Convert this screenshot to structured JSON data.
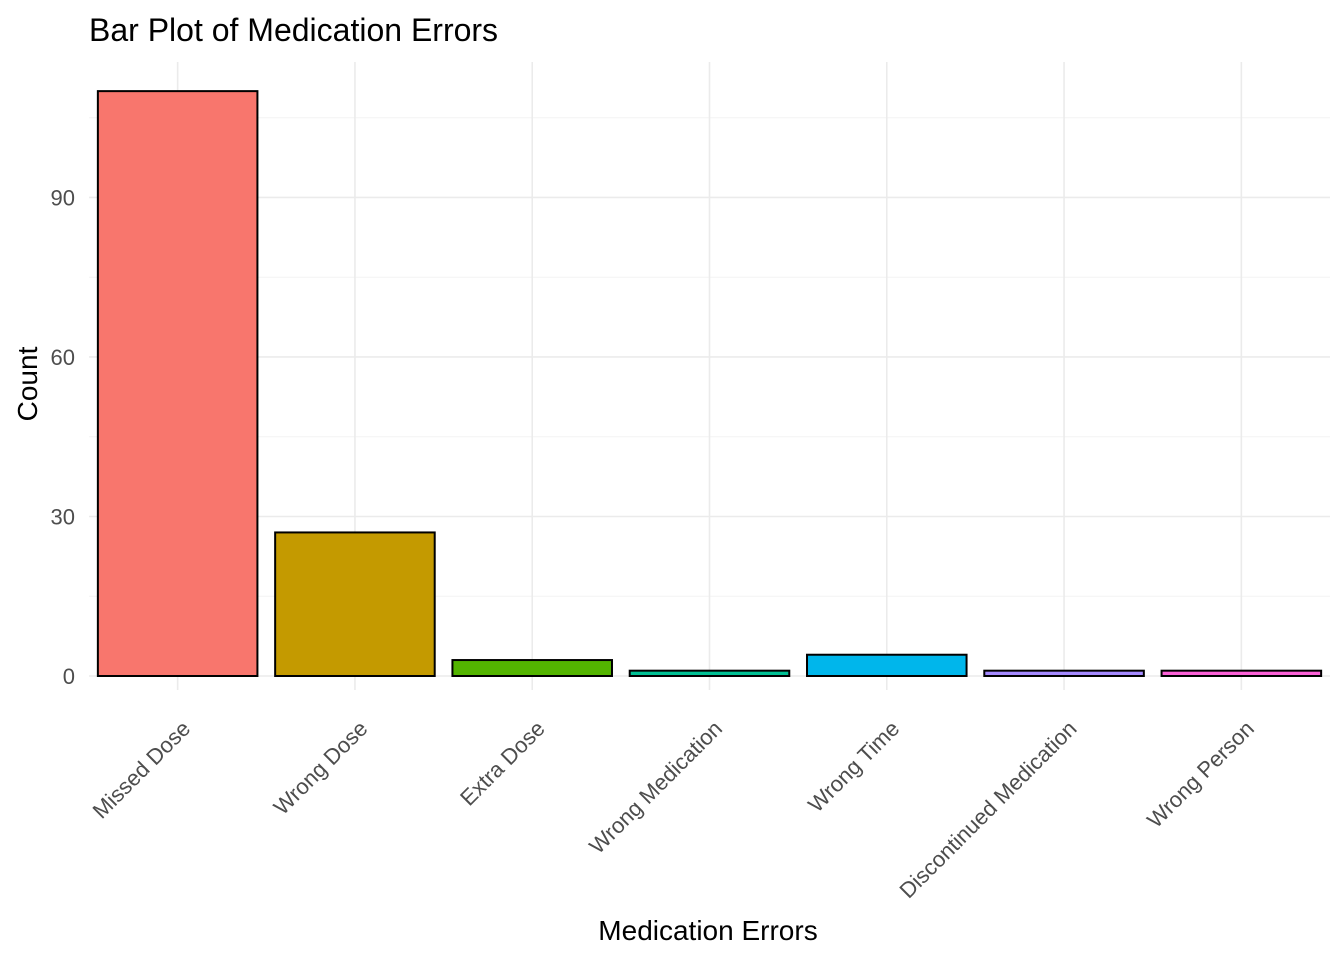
{
  "chart_data": {
    "type": "bar",
    "title": "Bar Plot of Medication Errors",
    "xlabel": "Medication Errors",
    "ylabel": "Count",
    "categories": [
      "Missed Dose",
      "Wrong Dose",
      "Extra Dose",
      "Wrong Medication",
      "Wrong Time",
      "Discontinued Medication",
      "Wrong Person"
    ],
    "values": [
      110,
      27,
      3,
      1,
      4,
      1,
      1
    ],
    "colors": [
      "#F8766D",
      "#C49A00",
      "#53B400",
      "#00C094",
      "#00B6EB",
      "#A58AFF",
      "#FB61D7"
    ],
    "bar_outline": "#000000",
    "ylim": [
      0,
      110
    ],
    "yticks": [
      0,
      30,
      60,
      90
    ],
    "grid": true,
    "legend": "none"
  }
}
